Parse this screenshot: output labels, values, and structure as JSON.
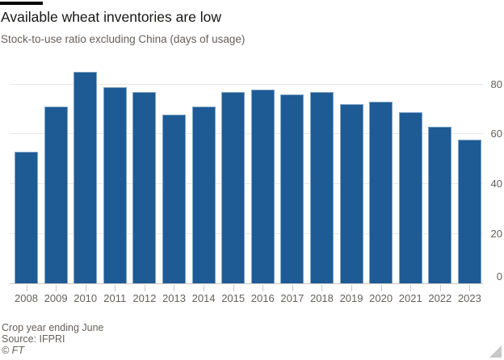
{
  "header": {
    "title": "Available wheat inventories are low",
    "subtitle": "Stock-to-use ratio excluding China (days of usage)"
  },
  "chart_data": {
    "type": "bar",
    "title": "Available wheat inventories are low",
    "subtitle": "Stock-to-use ratio excluding China (days of usage)",
    "categories": [
      "2008",
      "2009",
      "2010",
      "2011",
      "2012",
      "2013",
      "2014",
      "2015",
      "2016",
      "2017",
      "2018",
      "2019",
      "2020",
      "2021",
      "2022",
      "2023"
    ],
    "values": [
      53,
      71,
      85,
      79,
      77,
      68,
      71,
      77,
      78,
      76,
      77,
      72,
      73,
      69,
      63,
      58
    ],
    "xlabel": "",
    "ylabel": "",
    "ylim": [
      0,
      86
    ],
    "yticks": [
      0,
      20,
      40,
      60,
      80
    ],
    "y_axis_position": "right",
    "grid": true,
    "legend": "none",
    "colors": {
      "bar": "#1e5b95",
      "gridline": "#e9e8e6",
      "axis_line": "#c9c7c4",
      "axis_text": "#66605c",
      "title_text": "#191715",
      "accent_bar": "#000000"
    }
  },
  "footer": {
    "note": "Crop year ending June",
    "source": "Source: IFPRI",
    "credit": "© FT"
  }
}
